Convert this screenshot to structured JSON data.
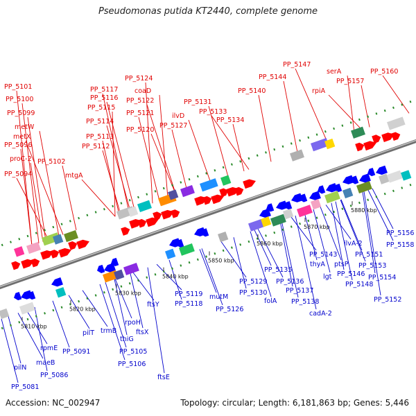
{
  "title": "Pseudomonas putida KT2440, complete genome",
  "footer": {
    "accession": "Accession: NC_002947",
    "topology": "Topology: circular; Length: 6,181,863 bp; Genes: 5,446"
  },
  "colors": {
    "forward": "#ff0000",
    "reverse": "#0000ff",
    "backbone": "#888888",
    "dash": "#2a8a2a"
  },
  "ticks": [
    "5810 kbp",
    "5820 kbp",
    "5830 kbp",
    "5840 kbp",
    "5850 kbp",
    "5860 kbp",
    "5870 kbp",
    "5880 kbp"
  ],
  "top_labels": [
    "PP_5101",
    "PP_5100",
    "PP_5099",
    "metW",
    "metX",
    "PP_5096",
    "proC-2",
    "PP_5102",
    "PP_5094",
    "mtgA",
    "PP_5124",
    "coaD",
    "PP_5117",
    "PP_5116",
    "PP_5122",
    "PP_5115",
    "PP_5121",
    "ilvD",
    "PP_5114",
    "PP_5120",
    "PP_5127",
    "PP_5113",
    "PP_5112",
    "PP_5131",
    "PP_5133",
    "PP_5134",
    "PP_5140",
    "PP_5144",
    "PP_5147",
    "rpiA",
    "serA",
    "PP_5157",
    "PP_5160"
  ],
  "bottom_labels": [
    "pilN",
    "PP_5081",
    "rpmE",
    "maeB",
    "PP_5086",
    "PP_5091",
    "pilT",
    "trmB",
    "thiG",
    "rpoH",
    "PP_5105",
    "PP_5106",
    "ftsX",
    "ftsE",
    "ftsY",
    "PP_5119",
    "PP_5118",
    "mutM",
    "PP_5126",
    "PP_5129",
    "PP_5130",
    "PP_5135",
    "folA",
    "PP_5136",
    "PP_5137",
    "PP_5138",
    "cadA-2",
    "PP_5143",
    "thyA",
    "lgt",
    "ptsP",
    "ilvA-2",
    "PP_5146",
    "PP_5148",
    "PP_5151",
    "PP_5153",
    "PP_5154",
    "PP_5152",
    "PP_5156",
    "PP_5158"
  ]
}
